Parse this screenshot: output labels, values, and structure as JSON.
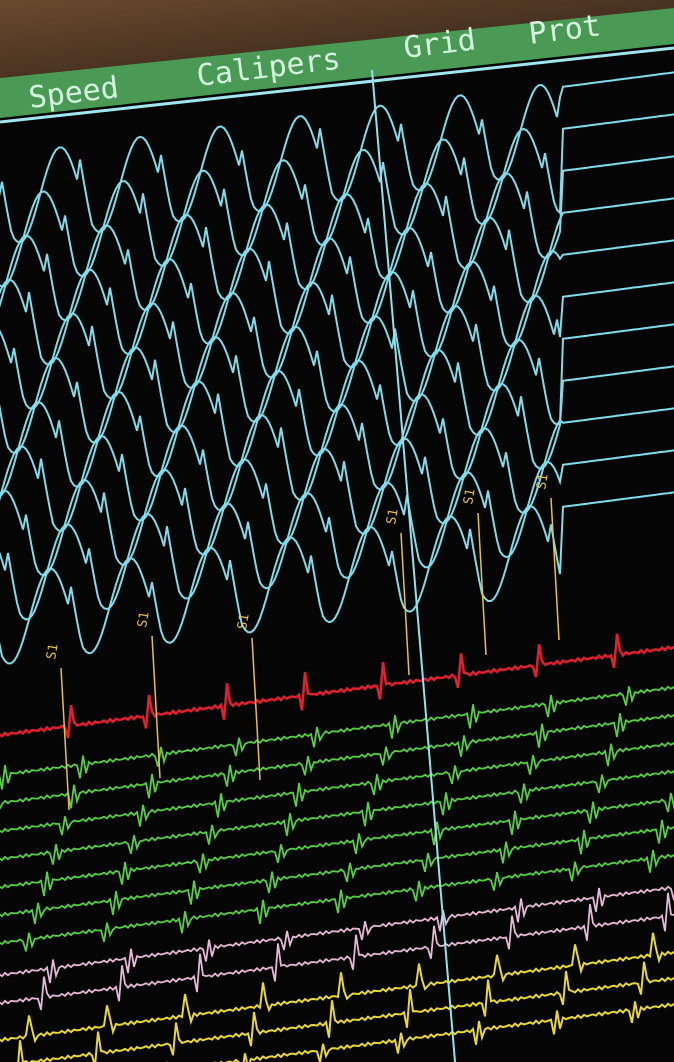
{
  "menu": {
    "items": [
      "Speed",
      "Calipers",
      "Grid",
      "Prot"
    ]
  },
  "markers": {
    "labels": [
      "S1",
      "S1",
      "S1",
      "S1",
      "S1",
      "S1"
    ]
  }
}
